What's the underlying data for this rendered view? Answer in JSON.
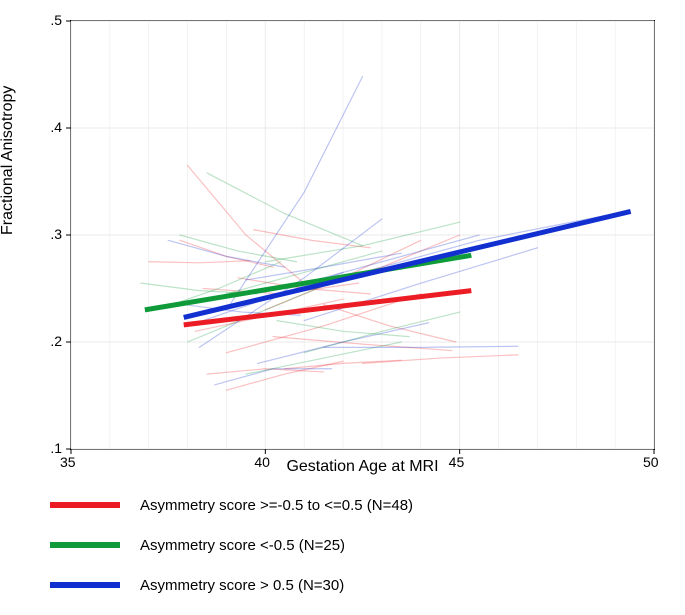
{
  "chart": {
    "type": "line",
    "background_color": "#ffffff",
    "plot_bg": "#ffffff",
    "grid_color": "#eaeaea",
    "border_color": "#000000",
    "xlabel": "Gestation Age at MRI",
    "ylabel": "Fractional Anisotropy",
    "label_fontsize": 16,
    "tick_fontsize": 14,
    "xlim": [
      35,
      50
    ],
    "ylim": [
      0.1,
      0.5
    ],
    "xticks": [
      35,
      40,
      45,
      50
    ],
    "yticks": [
      0.1,
      0.2,
      0.3,
      0.4,
      0.5
    ],
    "ytick_labels": [
      ".1",
      ".2",
      ".3",
      ".4",
      ".5"
    ],
    "minor_grid_x": [
      36,
      37,
      38,
      39,
      41,
      42,
      43,
      44,
      46,
      47,
      48,
      49
    ],
    "main_series": [
      {
        "name": "red",
        "color": "#ec1c24",
        "width": 5,
        "x": [
          37.9,
          45.3
        ],
        "y": [
          0.216,
          0.248
        ]
      },
      {
        "name": "green",
        "color": "#0f9b3a",
        "width": 5,
        "x": [
          36.9,
          45.3
        ],
        "y": [
          0.23,
          0.281
        ]
      },
      {
        "name": "blue",
        "color": "#1230d0",
        "width": 5,
        "x": [
          37.9,
          49.4
        ],
        "y": [
          0.223,
          0.322
        ]
      }
    ],
    "spaghetti": {
      "opacity": 0.28,
      "width": 1.2,
      "lines": [
        {
          "c": "#ec1c24",
          "x": [
            37.0,
            38.3,
            39.6
          ],
          "y": [
            0.275,
            0.274,
            0.276
          ]
        },
        {
          "c": "#ec1c24",
          "x": [
            38.0,
            39.5,
            41.0
          ],
          "y": [
            0.365,
            0.3,
            0.255
          ]
        },
        {
          "c": "#ec1c24",
          "x": [
            38.2,
            40.1,
            42.0
          ],
          "y": [
            0.21,
            0.225,
            0.24
          ]
        },
        {
          "c": "#ec1c24",
          "x": [
            38.5,
            40.0,
            41.5
          ],
          "y": [
            0.17,
            0.175,
            0.172
          ]
        },
        {
          "c": "#ec1c24",
          "x": [
            39.0,
            41.5,
            44.0
          ],
          "y": [
            0.19,
            0.215,
            0.245
          ]
        },
        {
          "c": "#ec1c24",
          "x": [
            39.3,
            41.0,
            42.7
          ],
          "y": [
            0.26,
            0.25,
            0.245
          ]
        },
        {
          "c": "#ec1c24",
          "x": [
            39.0,
            40.5,
            42.0
          ],
          "y": [
            0.155,
            0.17,
            0.182
          ]
        },
        {
          "c": "#ec1c24",
          "x": [
            40.0,
            42.0,
            44.0
          ],
          "y": [
            0.23,
            0.26,
            0.295
          ]
        },
        {
          "c": "#ec1c24",
          "x": [
            40.2,
            42.5,
            44.8
          ],
          "y": [
            0.205,
            0.198,
            0.192
          ]
        },
        {
          "c": "#ec1c24",
          "x": [
            40.5,
            42.0,
            43.5
          ],
          "y": [
            0.175,
            0.18,
            0.183
          ]
        },
        {
          "c": "#ec1c24",
          "x": [
            41.0,
            43.0,
            45.0
          ],
          "y": [
            0.25,
            0.27,
            0.3
          ]
        },
        {
          "c": "#ec1c24",
          "x": [
            41.5,
            43.2,
            44.9
          ],
          "y": [
            0.235,
            0.215,
            0.2
          ]
        },
        {
          "c": "#ec1c24",
          "x": [
            37.8,
            39.0,
            40.2
          ],
          "y": [
            0.295,
            0.28,
            0.27
          ]
        },
        {
          "c": "#ec1c24",
          "x": [
            38.4,
            40.4,
            42.4
          ],
          "y": [
            0.25,
            0.245,
            0.255
          ]
        },
        {
          "c": "#ec1c24",
          "x": [
            42.5,
            44.5,
            46.5
          ],
          "y": [
            0.18,
            0.185,
            0.188
          ]
        },
        {
          "c": "#ec1c24",
          "x": [
            39.7,
            41.2,
            42.7
          ],
          "y": [
            0.305,
            0.295,
            0.288
          ]
        },
        {
          "c": "#0f9b3a",
          "x": [
            37.2,
            38.8,
            40.4
          ],
          "y": [
            0.23,
            0.25,
            0.275
          ]
        },
        {
          "c": "#0f9b3a",
          "x": [
            37.8,
            39.3,
            40.8
          ],
          "y": [
            0.3,
            0.285,
            0.275
          ]
        },
        {
          "c": "#0f9b3a",
          "x": [
            38.0,
            40.0,
            42.0
          ],
          "y": [
            0.2,
            0.23,
            0.26
          ]
        },
        {
          "c": "#0f9b3a",
          "x": [
            38.5,
            40.5,
            42.5
          ],
          "y": [
            0.358,
            0.32,
            0.29
          ]
        },
        {
          "c": "#0f9b3a",
          "x": [
            39.0,
            41.0,
            43.0
          ],
          "y": [
            0.245,
            0.265,
            0.285
          ]
        },
        {
          "c": "#0f9b3a",
          "x": [
            39.5,
            41.5,
            43.5
          ],
          "y": [
            0.17,
            0.185,
            0.2
          ]
        },
        {
          "c": "#0f9b3a",
          "x": [
            40.0,
            42.5,
            45.0
          ],
          "y": [
            0.275,
            0.29,
            0.312
          ]
        },
        {
          "c": "#0f9b3a",
          "x": [
            40.3,
            42.0,
            43.7
          ],
          "y": [
            0.22,
            0.21,
            0.205
          ]
        },
        {
          "c": "#0f9b3a",
          "x": [
            41.0,
            43.0,
            45.0
          ],
          "y": [
            0.19,
            0.21,
            0.228
          ]
        },
        {
          "c": "#0f9b3a",
          "x": [
            36.8,
            38.3,
            39.8
          ],
          "y": [
            0.255,
            0.248,
            0.245
          ]
        },
        {
          "c": "#1230d0",
          "x": [
            37.5,
            39.0,
            40.5
          ],
          "y": [
            0.295,
            0.28,
            0.27
          ]
        },
        {
          "c": "#1230d0",
          "x": [
            38.0,
            40.0,
            42.0
          ],
          "y": [
            0.215,
            0.24,
            0.265
          ]
        },
        {
          "c": "#1230d0",
          "x": [
            38.3,
            41.0,
            43.0
          ],
          "y": [
            0.195,
            0.26,
            0.315
          ]
        },
        {
          "c": "#1230d0",
          "x": [
            39.0,
            41.0,
            42.5
          ],
          "y": [
            0.23,
            0.34,
            0.448
          ]
        },
        {
          "c": "#1230d0",
          "x": [
            39.5,
            41.5,
            43.5
          ],
          "y": [
            0.258,
            0.27,
            0.283
          ]
        },
        {
          "c": "#1230d0",
          "x": [
            39.8,
            42.0,
            44.2
          ],
          "y": [
            0.18,
            0.2,
            0.218
          ]
        },
        {
          "c": "#1230d0",
          "x": [
            40.5,
            43.0,
            45.5
          ],
          "y": [
            0.25,
            0.275,
            0.3
          ]
        },
        {
          "c": "#1230d0",
          "x": [
            41.0,
            44.0,
            47.0
          ],
          "y": [
            0.22,
            0.255,
            0.288
          ]
        },
        {
          "c": "#1230d0",
          "x": [
            41.5,
            44.0,
            46.5
          ],
          "y": [
            0.195,
            0.195,
            0.196
          ]
        },
        {
          "c": "#1230d0",
          "x": [
            42.0,
            45.5,
            49.0
          ],
          "y": [
            0.26,
            0.295,
            0.32
          ]
        },
        {
          "c": "#1230d0",
          "x": [
            38.7,
            40.2,
            41.7
          ],
          "y": [
            0.16,
            0.175,
            0.175
          ]
        },
        {
          "c": "#1230d0",
          "x": [
            37.9,
            39.4,
            40.9
          ],
          "y": [
            0.235,
            0.228,
            0.225
          ]
        }
      ]
    },
    "legend": {
      "swatch_width": 70,
      "swatch_height": 6,
      "fontsize": 15,
      "items": [
        {
          "color": "#ec1c24",
          "label": "Asymmetry score >=-0.5 to <=0.5 (N=48)"
        },
        {
          "color": "#0f9b3a",
          "label": "Asymmetry score <-0.5 (N=25)"
        },
        {
          "color": "#1230d0",
          "label": "Asymmetry score > 0.5 (N=30)"
        }
      ]
    }
  }
}
